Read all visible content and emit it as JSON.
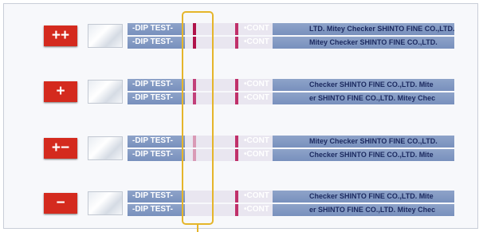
{
  "rows": [
    {
      "label": "++",
      "strips": [
        {
          "left": "-DIP TEST-",
          "right": "•CONT",
          "brand": "LTD. Mitey Checker SHINTO FINE CO.,LTD."
        },
        {
          "left": "-DIP TEST-",
          "right": "•CONT",
          "brand": "Mitey Checker SHINTO FINE CO.,LTD."
        }
      ]
    },
    {
      "label": "+",
      "strips": [
        {
          "left": "-DIP TEST-",
          "right": "•CONT",
          "brand": "Checker SHINTO FINE CO.,LTD. Mite"
        },
        {
          "left": "-DIP TEST-",
          "right": "•CONT",
          "brand": "er SHINTO FINE CO.,LTD. Mitey Chec"
        }
      ]
    },
    {
      "label": "+−",
      "strips": [
        {
          "left": "-DIP TEST-",
          "right": "•CONT",
          "brand": "Mitey Checker SHINTO FINE CO.,LTD."
        },
        {
          "left": "-DIP TEST-",
          "right": "•CONT",
          "brand": "Checker SHINTO FINE CO.,LTD. Mite"
        }
      ]
    },
    {
      "label": "−",
      "strips": [
        {
          "left": "-DIP TEST-",
          "right": "•CONT",
          "brand": "Checker SHINTO FINE CO.,LTD. Mite"
        },
        {
          "left": "-DIP TEST-",
          "right": "•CONT",
          "brand": "er SHINTO FINE CO.,LTD. Mitey Chec"
        }
      ]
    }
  ]
}
